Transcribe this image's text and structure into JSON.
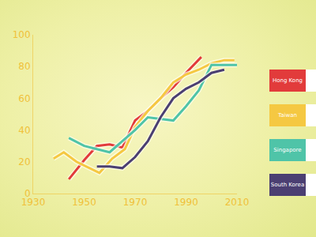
{
  "chart_data": {
    "type": "line",
    "xlim": [
      1930,
      2010
    ],
    "xticks": [
      1930,
      1950,
      1970,
      1990,
      2010
    ],
    "ylim": [
      0,
      100
    ],
    "yticks": [
      0,
      20,
      40,
      60,
      80,
      100
    ],
    "grid": false,
    "legend": "right",
    "series": [
      {
        "name": "Hong Kong",
        "color": "#e23b3b",
        "x": [
          1944,
          1950,
          1955,
          1960,
          1965,
          1970,
          1975,
          1980,
          1985,
          1990,
          1996
        ],
        "values": [
          9,
          21,
          30,
          31,
          29,
          46,
          52,
          60,
          67,
          76,
          86
        ]
      },
      {
        "name": "Taiwan",
        "color": "#f5c842",
        "x": [
          1938,
          1942,
          1947,
          1952,
          1956,
          1961,
          1966,
          1970,
          1975,
          1980,
          1985,
          1990,
          1995,
          2000,
          2005,
          2009
        ],
        "values": [
          22,
          26,
          20,
          16,
          13,
          22,
          28,
          42,
          52,
          60,
          70,
          75,
          78,
          82,
          84,
          84
        ]
      },
      {
        "name": "Singapore",
        "color": "#4fc4a8",
        "x": [
          1944,
          1950,
          1955,
          1960,
          1965,
          1970,
          1975,
          1980,
          1985,
          1990,
          1995,
          2000,
          2005,
          2010
        ],
        "values": [
          35,
          30,
          28,
          26,
          33,
          40,
          48,
          47,
          46,
          55,
          65,
          81,
          81,
          81
        ]
      },
      {
        "name": "South Korea",
        "color": "#4b3f72",
        "x": [
          1955,
          1960,
          1965,
          1970,
          1975,
          1980,
          1985,
          1990,
          1995,
          2000,
          2005
        ],
        "values": [
          17,
          17,
          16,
          23,
          33,
          48,
          60,
          66,
          70,
          76,
          78
        ]
      }
    ]
  }
}
